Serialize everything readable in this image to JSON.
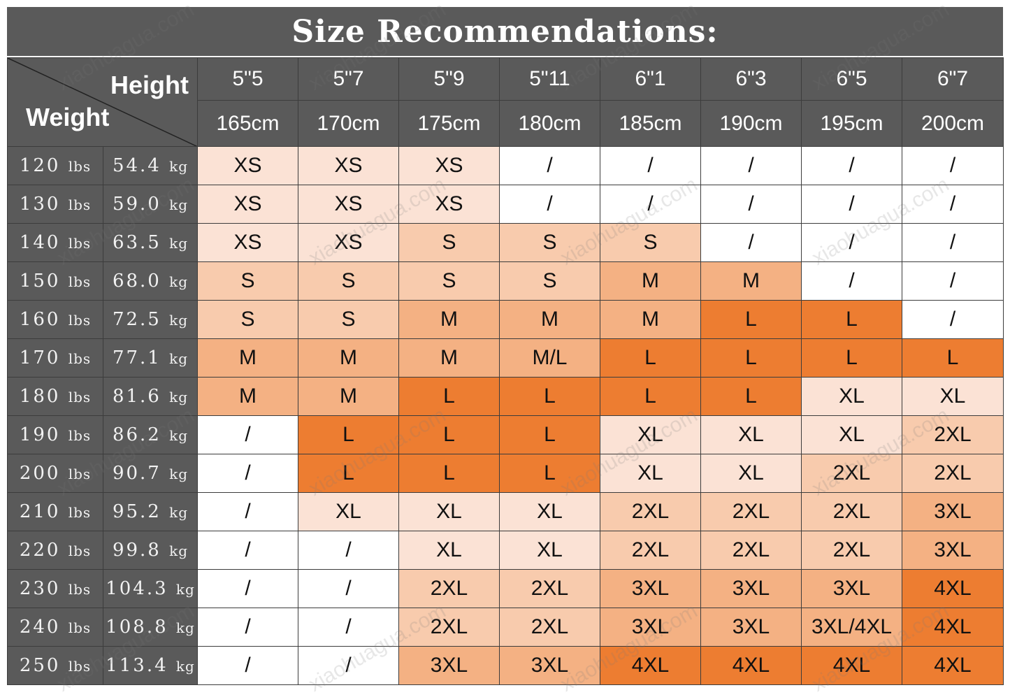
{
  "title": "Size Recommendations:",
  "corner": {
    "height_label": "Height",
    "weight_label": "Weight"
  },
  "heights": [
    {
      "ft": "5\"5",
      "cm": "165cm"
    },
    {
      "ft": "5\"7",
      "cm": "170cm"
    },
    {
      "ft": "5\"9",
      "cm": "175cm"
    },
    {
      "ft": "5\"11",
      "cm": "180cm"
    },
    {
      "ft": "6\"1",
      "cm": "185cm"
    },
    {
      "ft": "6\"3",
      "cm": "190cm"
    },
    {
      "ft": "6\"5",
      "cm": "195cm"
    },
    {
      "ft": "6\"7",
      "cm": "200cm"
    }
  ],
  "units": {
    "lbs": "lbs",
    "kg": "kg"
  },
  "rows": [
    {
      "lbs": "120",
      "kg": "54.4",
      "sizes": [
        "XS",
        "XS",
        "XS",
        "/",
        "/",
        "/",
        "/",
        "/"
      ]
    },
    {
      "lbs": "130",
      "kg": "59.0",
      "sizes": [
        "XS",
        "XS",
        "XS",
        "/",
        "/",
        "/",
        "/",
        "/"
      ]
    },
    {
      "lbs": "140",
      "kg": "63.5",
      "sizes": [
        "XS",
        "XS",
        "S",
        "S",
        "S",
        "/",
        "/",
        "/"
      ]
    },
    {
      "lbs": "150",
      "kg": "68.0",
      "sizes": [
        "S",
        "S",
        "S",
        "S",
        "M",
        "M",
        "/",
        "/"
      ]
    },
    {
      "lbs": "160",
      "kg": "72.5",
      "sizes": [
        "S",
        "S",
        "M",
        "M",
        "M",
        "L",
        "L",
        "/"
      ]
    },
    {
      "lbs": "170",
      "kg": "77.1",
      "sizes": [
        "M",
        "M",
        "M",
        "M/L",
        "L",
        "L",
        "L",
        "L"
      ]
    },
    {
      "lbs": "180",
      "kg": "81.6",
      "sizes": [
        "M",
        "M",
        "L",
        "L",
        "L",
        "L",
        "XL",
        "XL"
      ]
    },
    {
      "lbs": "190",
      "kg": "86.2",
      "sizes": [
        "/",
        "L",
        "L",
        "L",
        "XL",
        "XL",
        "XL",
        "2XL"
      ]
    },
    {
      "lbs": "200",
      "kg": "90.7",
      "sizes": [
        "/",
        "L",
        "L",
        "L",
        "XL",
        "XL",
        "2XL",
        "2XL"
      ]
    },
    {
      "lbs": "210",
      "kg": "95.2",
      "sizes": [
        "/",
        "XL",
        "XL",
        "XL",
        "2XL",
        "2XL",
        "2XL",
        "3XL"
      ]
    },
    {
      "lbs": "220",
      "kg": "99.8",
      "sizes": [
        "/",
        "/",
        "XL",
        "XL",
        "2XL",
        "2XL",
        "2XL",
        "3XL"
      ]
    },
    {
      "lbs": "230",
      "kg": "104.3",
      "sizes": [
        "/",
        "/",
        "2XL",
        "2XL",
        "3XL",
        "3XL",
        "3XL",
        "4XL"
      ]
    },
    {
      "lbs": "240",
      "kg": "108.8",
      "sizes": [
        "/",
        "/",
        "2XL",
        "2XL",
        "3XL",
        "3XL",
        "3XL/4XL",
        "4XL"
      ]
    },
    {
      "lbs": "250",
      "kg": "113.4",
      "sizes": [
        "/",
        "/",
        "3XL",
        "3XL",
        "4XL",
        "4XL",
        "4XL",
        "4XL"
      ]
    }
  ],
  "size_colors": {
    "XS": "#fbe2d5",
    "S": "#f8cbad",
    "M": "#f4b183",
    "M/L": "#f4b183",
    "L": "#ed7d31",
    "XL": "#fbe2d5",
    "2XL": "#f8cbad",
    "3XL": "#f4b183",
    "3XL/4XL": "#f4b183",
    "4XL": "#ed7d31",
    "/": "#ffffff"
  },
  "watermark": "xiaohuagua.com"
}
